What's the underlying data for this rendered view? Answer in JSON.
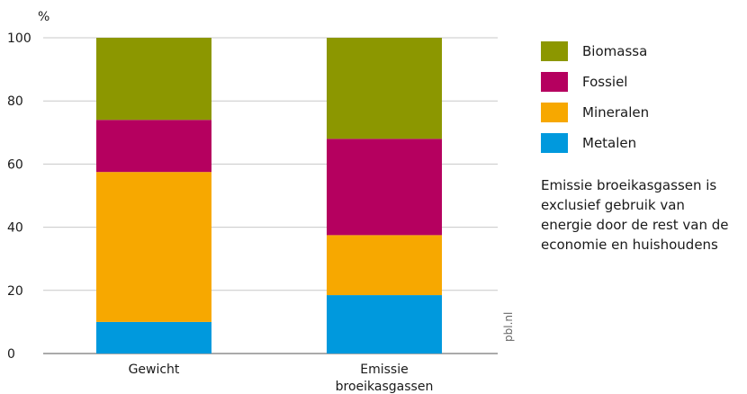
{
  "chart_data": {
    "type": "bar",
    "stacked": true,
    "ylabel": "%",
    "ylim": [
      0,
      100
    ],
    "yticks": [
      0,
      20,
      40,
      60,
      80,
      100
    ],
    "categories": [
      "Gewicht",
      "Emissie broeikasgassen"
    ],
    "category_lines": [
      [
        "Gewicht"
      ],
      [
        "Emissie",
        "broeikasgassen"
      ]
    ],
    "series": [
      {
        "name": "Metalen",
        "color": "#0099dd",
        "values": [
          10,
          18.5
        ]
      },
      {
        "name": "Mineralen",
        "color": "#f7a800",
        "values": [
          47.5,
          19
        ]
      },
      {
        "name": "Fossiel",
        "color": "#b5005f",
        "values": [
          16.5,
          30.5
        ]
      },
      {
        "name": "Biomassa",
        "color": "#8c9700",
        "values": [
          26,
          32
        ]
      }
    ],
    "legend": {
      "position": "right",
      "order": [
        "Biomassa",
        "Fossiel",
        "Mineralen",
        "Metalen"
      ]
    },
    "grid": true
  },
  "note": "Emissie broeikasgassen is exclusief gebruik van energie door de rest van de economie en huishoudens",
  "source": "pbl.nl"
}
